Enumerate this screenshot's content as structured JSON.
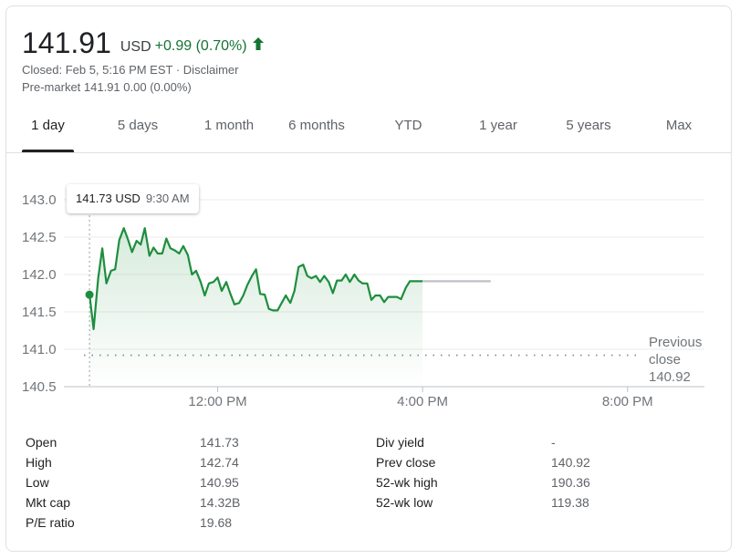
{
  "header": {
    "price": "141.91",
    "currency": "USD",
    "change": "+0.99 (0.70%)",
    "closed_text": "Closed: Feb 5, 5:16 PM EST ·",
    "disclaimer": "Disclaimer",
    "premarket": "Pre-market 141.91 0.00 (0.00%)",
    "change_color": "#137333",
    "direction_icon": "arrow-up-icon"
  },
  "tabs": [
    {
      "label": "1 day",
      "active": true
    },
    {
      "label": "5 days",
      "active": false
    },
    {
      "label": "1 month",
      "active": false
    },
    {
      "label": "6 months",
      "active": false
    },
    {
      "label": "YTD",
      "active": false
    },
    {
      "label": "1 year",
      "active": false
    },
    {
      "label": "5 years",
      "active": false
    },
    {
      "label": "Max",
      "active": false
    }
  ],
  "tooltip": {
    "price": "141.73 USD",
    "time": "9:30 AM"
  },
  "prev_close_label": {
    "line1": "Previous",
    "line2": "close",
    "value": "140.92"
  },
  "chart_data": {
    "type": "line",
    "title": "",
    "xlabel": "",
    "ylabel": "",
    "ylim": [
      140.5,
      143.0
    ],
    "y_ticks": [
      "143.0",
      "142.5",
      "142.0",
      "141.5",
      "141.0",
      "140.5"
    ],
    "x_ticks": [
      "12:00 PM",
      "4:00 PM",
      "8:00 PM"
    ],
    "x_range_hours": [
      9.0,
      21.5
    ],
    "previous_close": 140.92,
    "line_color": "#1e8e3e",
    "series": [
      {
        "x": [
          9.5,
          9.58,
          9.67,
          9.75,
          9.83,
          9.92,
          10.0,
          10.08,
          10.17,
          10.25,
          10.33,
          10.42,
          10.5,
          10.58,
          10.67,
          10.75,
          10.83,
          10.92,
          11.0,
          11.08,
          11.17,
          11.25,
          11.33,
          11.42,
          11.5,
          11.58,
          11.67,
          11.75,
          11.83,
          11.92,
          12.0,
          12.08,
          12.17,
          12.25,
          12.33,
          12.42,
          12.5,
          12.58,
          12.67,
          12.75,
          12.83,
          12.92,
          13.0,
          13.08,
          13.17,
          13.25,
          13.33,
          13.42,
          13.5,
          13.58,
          13.67,
          13.75,
          13.83,
          13.92,
          14.0,
          14.08,
          14.17,
          14.25,
          14.33,
          14.42,
          14.5,
          14.58,
          14.67,
          14.75,
          14.83,
          14.92,
          15.0,
          15.08,
          15.17,
          15.25,
          15.33,
          15.42,
          15.5,
          15.58,
          15.67,
          15.75,
          15.83,
          15.92,
          16.0
        ],
        "y": [
          141.73,
          141.27,
          141.95,
          142.35,
          141.88,
          142.05,
          142.07,
          142.46,
          142.62,
          142.47,
          142.3,
          142.45,
          142.4,
          142.62,
          142.25,
          142.36,
          142.28,
          142.28,
          142.48,
          142.35,
          142.32,
          142.28,
          142.38,
          142.26,
          142.0,
          142.05,
          141.9,
          141.72,
          141.88,
          141.9,
          141.96,
          141.78,
          141.9,
          141.74,
          141.6,
          141.62,
          141.72,
          141.86,
          141.98,
          142.07,
          141.74,
          141.73,
          141.54,
          141.52,
          141.52,
          141.62,
          141.72,
          141.62,
          141.78,
          142.1,
          142.13,
          141.98,
          141.95,
          141.98,
          141.9,
          141.98,
          141.9,
          141.75,
          141.92,
          141.92,
          142.0,
          141.9,
          142.0,
          141.92,
          141.88,
          141.88,
          141.66,
          141.72,
          141.72,
          141.63,
          141.7,
          141.7,
          141.7,
          141.67,
          141.82,
          141.91,
          141.91,
          141.91,
          141.91
        ]
      }
    ],
    "after_hours": {
      "x": [
        16.0,
        17.33
      ],
      "y": [
        141.91,
        141.91
      ],
      "color": "#bdc1c6"
    }
  },
  "stats_left": [
    {
      "label": "Open",
      "value": "141.73"
    },
    {
      "label": "High",
      "value": "142.74"
    },
    {
      "label": "Low",
      "value": "140.95"
    },
    {
      "label": "Mkt cap",
      "value": "14.32B"
    },
    {
      "label": "P/E ratio",
      "value": "19.68"
    }
  ],
  "stats_right": [
    {
      "label": "Div yield",
      "value": "-"
    },
    {
      "label": "Prev close",
      "value": "140.92"
    },
    {
      "label": "52-wk high",
      "value": "190.36"
    },
    {
      "label": "52-wk low",
      "value": "119.38"
    }
  ]
}
